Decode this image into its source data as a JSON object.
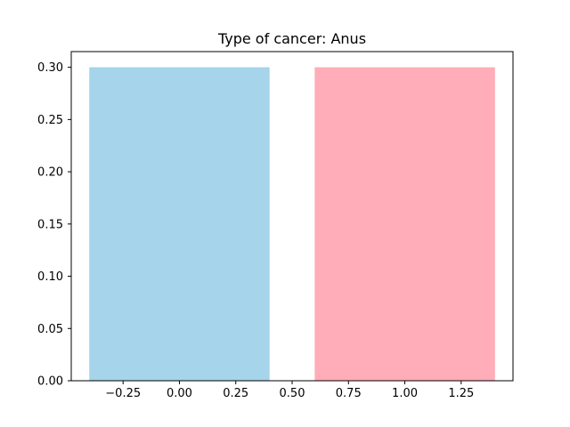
{
  "chart_data": {
    "type": "bar",
    "title": "Type of cancer: Anus",
    "xlabel": "",
    "ylabel": "",
    "bars": [
      {
        "x": 0,
        "width": 0.8,
        "value": 0.3,
        "color": "#a6d4eb"
      },
      {
        "x": 1,
        "width": 0.8,
        "value": 0.3,
        "color": "#ffadb8"
      }
    ],
    "xlim": [
      -0.48,
      1.48
    ],
    "ylim": [
      0,
      0.315
    ],
    "x_ticks": [
      {
        "value": -0.25,
        "label": "−0.25"
      },
      {
        "value": 0.0,
        "label": "0.00"
      },
      {
        "value": 0.25,
        "label": "0.25"
      },
      {
        "value": 0.5,
        "label": "0.50"
      },
      {
        "value": 0.75,
        "label": "0.75"
      },
      {
        "value": 1.0,
        "label": "1.00"
      },
      {
        "value": 1.25,
        "label": "1.25"
      }
    ],
    "y_ticks": [
      {
        "value": 0.0,
        "label": "0.00"
      },
      {
        "value": 0.05,
        "label": "0.05"
      },
      {
        "value": 0.1,
        "label": "0.10"
      },
      {
        "value": 0.15,
        "label": "0.15"
      },
      {
        "value": 0.2,
        "label": "0.20"
      },
      {
        "value": 0.25,
        "label": "0.25"
      },
      {
        "value": 0.3,
        "label": "0.30"
      }
    ],
    "grid": false,
    "legend": "none"
  }
}
